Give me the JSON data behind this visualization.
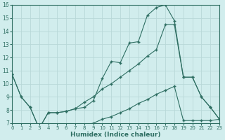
{
  "xlabel": "Humidex (Indice chaleur)",
  "bg_color": "#d1eded",
  "grid_color": "#b8d8d8",
  "line_color": "#2e6e62",
  "xlim": [
    0,
    23
  ],
  "ylim": [
    7,
    16
  ],
  "xticks": [
    0,
    1,
    2,
    3,
    4,
    5,
    6,
    7,
    8,
    9,
    10,
    11,
    12,
    13,
    14,
    15,
    16,
    17,
    18,
    19,
    20,
    21,
    22,
    23
  ],
  "yticks": [
    7,
    8,
    9,
    10,
    11,
    12,
    13,
    14,
    15,
    16
  ],
  "curve1_x": [
    0,
    1,
    2,
    3,
    4,
    5,
    6,
    7,
    8,
    9,
    10,
    11,
    12,
    13,
    14,
    15,
    16,
    17,
    18,
    19,
    20,
    21,
    22,
    23
  ],
  "curve1_y": [
    10.7,
    9.0,
    8.2,
    null,
    null,
    null,
    null,
    null,
    null,
    null,
    null,
    11.7,
    11.6,
    13.1,
    13.2,
    15.2,
    15.8,
    16.0,
    14.8,
    null,
    null,
    null,
    null,
    null
  ],
  "curve2_x": [
    0,
    1,
    2,
    3,
    4,
    5,
    6,
    7,
    8,
    9,
    10,
    11,
    12,
    13,
    14,
    15,
    16,
    17,
    18,
    19,
    20,
    21,
    22,
    23
  ],
  "curve2_y": [
    10.7,
    9.0,
    8.2,
    null,
    null,
    null,
    null,
    null,
    null,
    null,
    9.6,
    10.0,
    10.5,
    11.0,
    11.5,
    12.1,
    12.6,
    14.5,
    14.5,
    null,
    null,
    null,
    null,
    null
  ],
  "curve3_x": [
    0,
    1,
    2,
    3,
    4,
    5,
    6,
    7,
    8,
    9,
    10,
    11,
    12,
    13,
    14,
    15,
    16,
    17,
    18,
    19,
    20,
    21,
    22,
    23
  ],
  "curve3_y": [
    null,
    null,
    null,
    null,
    null,
    null,
    null,
    null,
    null,
    null,
    null,
    null,
    null,
    null,
    null,
    null,
    null,
    null,
    null,
    null,
    null,
    null,
    null,
    null
  ],
  "c1x": [
    0,
    1,
    2,
    3,
    4,
    5,
    6,
    7,
    8,
    9,
    10,
    11,
    12,
    13,
    14,
    15,
    16,
    17,
    18,
    19,
    20,
    21,
    22,
    23
  ],
  "c1y": [
    10.7,
    9.0,
    8.2,
    6.6,
    7.8,
    7.8,
    7.9,
    8.1,
    8.2,
    8.7,
    10.4,
    11.7,
    11.6,
    13.1,
    13.2,
    15.2,
    15.8,
    16.0,
    14.8,
    10.5,
    10.5,
    9.0,
    8.2,
    7.3
  ],
  "c2x": [
    0,
    1,
    2,
    3,
    4,
    5,
    6,
    7,
    8,
    9,
    10,
    11,
    12,
    13,
    14,
    15,
    16,
    17,
    18,
    19,
    20,
    21,
    22,
    23
  ],
  "c2y": [
    10.7,
    9.0,
    8.2,
    6.6,
    7.8,
    7.8,
    7.9,
    8.1,
    8.6,
    9.0,
    9.6,
    10.0,
    10.5,
    11.0,
    11.5,
    12.1,
    12.6,
    14.5,
    14.5,
    10.5,
    10.5,
    9.0,
    8.2,
    7.3
  ],
  "c3x": [
    3,
    4,
    5,
    6,
    7,
    8,
    9,
    10,
    11,
    12,
    13,
    14,
    15,
    16,
    17,
    18,
    19,
    20,
    21,
    22,
    23
  ],
  "c3y": [
    6.6,
    6.65,
    6.7,
    6.75,
    6.8,
    6.85,
    7.0,
    7.3,
    7.5,
    7.8,
    8.1,
    8.5,
    8.8,
    9.2,
    9.5,
    9.8,
    7.2,
    7.2,
    7.2,
    7.2,
    7.3
  ]
}
